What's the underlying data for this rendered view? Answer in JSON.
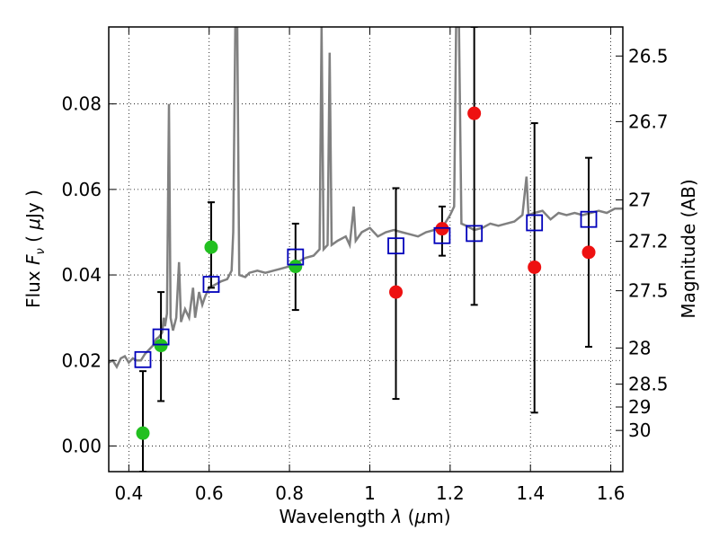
{
  "chart_data": {
    "type": "scatter",
    "xlabel": "Wavelength  λ (μm)",
    "ylabel_left": "Flux  F_ν  ( μJy )",
    "ylabel_left_parts": [
      "Flux  ",
      "F",
      "ν",
      "  (  ",
      "μ",
      "Jy )"
    ],
    "xlabel_parts": [
      "Wavelength  ",
      "λ",
      " (",
      "μ",
      "m)"
    ],
    "ylabel_right": "Magnitude (AB)",
    "xlim": [
      0.35,
      1.63
    ],
    "ylim": [
      -0.006,
      0.098
    ],
    "grid": true,
    "x_ticks": [
      {
        "value": 0.4,
        "label": "0.4"
      },
      {
        "value": 0.6,
        "label": "0.6"
      },
      {
        "value": 0.8,
        "label": "0.8"
      },
      {
        "value": 1.0,
        "label": "1"
      },
      {
        "value": 1.2,
        "label": "1.2"
      },
      {
        "value": 1.4,
        "label": "1.4"
      },
      {
        "value": 1.6,
        "label": "1.6"
      }
    ],
    "y_ticks": [
      {
        "value": 0.0,
        "label": "0.00"
      },
      {
        "value": 0.02,
        "label": "0.02"
      },
      {
        "value": 0.04,
        "label": "0.04"
      },
      {
        "value": 0.06,
        "label": "0.06"
      },
      {
        "value": 0.08,
        "label": "0.08"
      }
    ],
    "mag_ticks": [
      {
        "value": 26.5,
        "label": "26.5"
      },
      {
        "value": 26.7,
        "label": "26.7"
      },
      {
        "value": 27.0,
        "label": "27"
      },
      {
        "value": 27.2,
        "label": "27.2"
      },
      {
        "value": 27.5,
        "label": "27.5"
      },
      {
        "value": 28.0,
        "label": "28"
      },
      {
        "value": 28.5,
        "label": "28.5"
      },
      {
        "value": 29.0,
        "label": "29"
      },
      {
        "value": 30.0,
        "label": "30"
      }
    ],
    "template_spectrum": {
      "name": "model spectrum",
      "color": "#808080",
      "points": [
        [
          0.35,
          0.0195
        ],
        [
          0.36,
          0.02
        ],
        [
          0.37,
          0.0185
        ],
        [
          0.38,
          0.0205
        ],
        [
          0.39,
          0.021
        ],
        [
          0.4,
          0.0195
        ],
        [
          0.41,
          0.0205
        ],
        [
          0.42,
          0.02
        ],
        [
          0.43,
          0.02
        ],
        [
          0.44,
          0.0215
        ],
        [
          0.45,
          0.0225
        ],
        [
          0.46,
          0.0235
        ],
        [
          0.468,
          0.025
        ],
        [
          0.475,
          0.0255
        ],
        [
          0.483,
          0.0265
        ],
        [
          0.487,
          0.03
        ],
        [
          0.49,
          0.028
        ],
        [
          0.495,
          0.031
        ],
        [
          0.5,
          0.08
        ],
        [
          0.504,
          0.03
        ],
        [
          0.51,
          0.027
        ],
        [
          0.518,
          0.03
        ],
        [
          0.525,
          0.043
        ],
        [
          0.53,
          0.029
        ],
        [
          0.54,
          0.032
        ],
        [
          0.55,
          0.03
        ],
        [
          0.56,
          0.037
        ],
        [
          0.565,
          0.03
        ],
        [
          0.575,
          0.036
        ],
        [
          0.583,
          0.033
        ],
        [
          0.59,
          0.035
        ],
        [
          0.6,
          0.037
        ],
        [
          0.61,
          0.0375
        ],
        [
          0.62,
          0.038
        ],
        [
          0.63,
          0.0385
        ],
        [
          0.645,
          0.039
        ],
        [
          0.656,
          0.041
        ],
        [
          0.66,
          0.05
        ],
        [
          0.665,
          0.098
        ],
        [
          0.67,
          0.098
        ],
        [
          0.675,
          0.04
        ],
        [
          0.69,
          0.0395
        ],
        [
          0.7,
          0.0405
        ],
        [
          0.72,
          0.041
        ],
        [
          0.74,
          0.0405
        ],
        [
          0.76,
          0.041
        ],
        [
          0.78,
          0.0415
        ],
        [
          0.8,
          0.042
        ],
        [
          0.82,
          0.043
        ],
        [
          0.84,
          0.044
        ],
        [
          0.86,
          0.0445
        ],
        [
          0.875,
          0.046
        ],
        [
          0.88,
          0.098
        ],
        [
          0.885,
          0.046
        ],
        [
          0.895,
          0.047
        ],
        [
          0.9,
          0.092
        ],
        [
          0.905,
          0.047
        ],
        [
          0.92,
          0.048
        ],
        [
          0.93,
          0.0485
        ],
        [
          0.94,
          0.049
        ],
        [
          0.95,
          0.047
        ],
        [
          0.96,
          0.056
        ],
        [
          0.965,
          0.048
        ],
        [
          0.98,
          0.05
        ],
        [
          1.0,
          0.051
        ],
        [
          1.02,
          0.049
        ],
        [
          1.04,
          0.05
        ],
        [
          1.06,
          0.0505
        ],
        [
          1.08,
          0.05
        ],
        [
          1.1,
          0.0495
        ],
        [
          1.12,
          0.049
        ],
        [
          1.14,
          0.05
        ],
        [
          1.16,
          0.0505
        ],
        [
          1.18,
          0.051
        ],
        [
          1.2,
          0.054
        ],
        [
          1.21,
          0.056
        ],
        [
          1.215,
          0.098
        ],
        [
          1.222,
          0.098
        ],
        [
          1.228,
          0.052
        ],
        [
          1.24,
          0.0515
        ],
        [
          1.26,
          0.0505
        ],
        [
          1.28,
          0.051
        ],
        [
          1.3,
          0.052
        ],
        [
          1.32,
          0.0515
        ],
        [
          1.34,
          0.052
        ],
        [
          1.36,
          0.0525
        ],
        [
          1.38,
          0.054
        ],
        [
          1.39,
          0.063
        ],
        [
          1.395,
          0.054
        ],
        [
          1.41,
          0.0545
        ],
        [
          1.43,
          0.055
        ],
        [
          1.45,
          0.053
        ],
        [
          1.47,
          0.0545
        ],
        [
          1.49,
          0.054
        ],
        [
          1.51,
          0.0545
        ],
        [
          1.53,
          0.054
        ],
        [
          1.55,
          0.0545
        ],
        [
          1.57,
          0.055
        ],
        [
          1.59,
          0.0545
        ],
        [
          1.61,
          0.0555
        ],
        [
          1.63,
          0.0555
        ]
      ]
    },
    "series": [
      {
        "name": "green observations",
        "color": "#22c020",
        "marker": "circle",
        "points": [
          {
            "x": 0.435,
            "y": 0.003,
            "err_low": -0.006,
            "err_high": 0.0175
          },
          {
            "x": 0.48,
            "y": 0.0235,
            "err_low": 0.0105,
            "err_high": 0.036
          },
          {
            "x": 0.605,
            "y": 0.0465,
            "err_low": 0.037,
            "err_high": 0.057
          },
          {
            "x": 0.815,
            "y": 0.042,
            "err_low": 0.0318,
            "err_high": 0.052
          }
        ]
      },
      {
        "name": "red observations",
        "color": "#ee1111",
        "marker": "circle",
        "points": [
          {
            "x": 1.065,
            "y": 0.036,
            "err_low": 0.011,
            "err_high": 0.0603
          },
          {
            "x": 1.18,
            "y": 0.0508,
            "err_low": 0.0445,
            "err_high": 0.056
          },
          {
            "x": 1.26,
            "y": 0.0778,
            "err_low": 0.033,
            "err_high": 0.098
          },
          {
            "x": 1.41,
            "y": 0.0418,
            "err_low": 0.0078,
            "err_high": 0.0755
          },
          {
            "x": 1.545,
            "y": 0.0453,
            "err_low": 0.0232,
            "err_high": 0.0674
          }
        ]
      },
      {
        "name": "model band fluxes",
        "color": "#0000bb",
        "marker": "open-square",
        "points": [
          {
            "x": 0.435,
            "y": 0.0202
          },
          {
            "x": 0.48,
            "y": 0.0255
          },
          {
            "x": 0.605,
            "y": 0.0378
          },
          {
            "x": 0.815,
            "y": 0.0442
          },
          {
            "x": 1.065,
            "y": 0.0468
          },
          {
            "x": 1.18,
            "y": 0.0492
          },
          {
            "x": 1.26,
            "y": 0.0497
          },
          {
            "x": 1.41,
            "y": 0.0522
          },
          {
            "x": 1.545,
            "y": 0.053
          }
        ]
      }
    ]
  }
}
